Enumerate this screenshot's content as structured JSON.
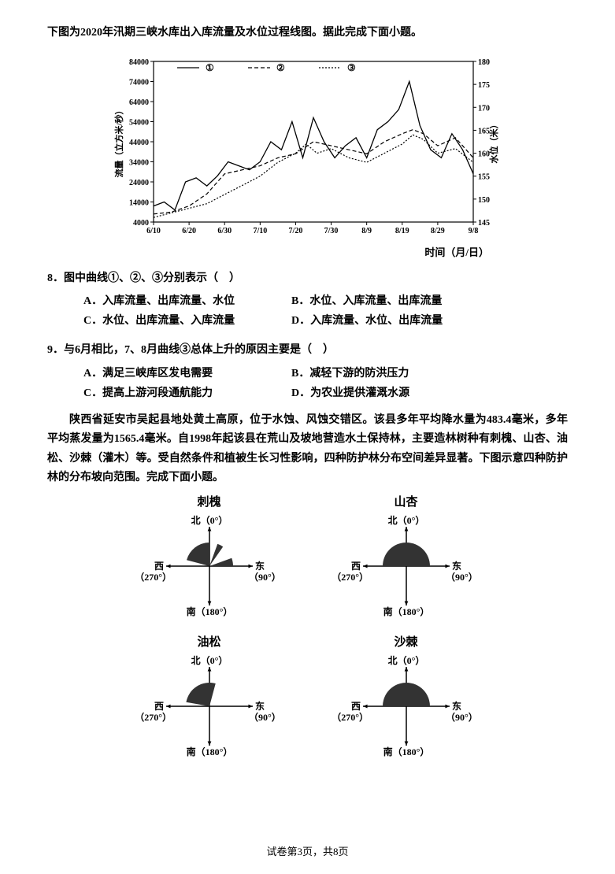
{
  "intro": "下图为2020年汛期三峡水库出入库流量及水位过程线图。据此完成下面小题。",
  "chart": {
    "type": "line",
    "bgcolor": "#ffffff",
    "border_color": "#000000",
    "grid_color": "#000000",
    "y_left_label": "流量（立方米/秒）",
    "y_right_label": "水位（米）",
    "x_label": "时间（月/日）",
    "y_left_ticks": [
      4000,
      14000,
      24000,
      34000,
      44000,
      54000,
      64000,
      74000,
      84000
    ],
    "y_left_lim": [
      4000,
      84000
    ],
    "y_right_ticks": [
      145,
      150,
      155,
      160,
      165,
      170,
      175,
      180
    ],
    "y_right_lim": [
      145,
      180
    ],
    "x_ticks": [
      "6/10",
      "6/20",
      "6/30",
      "7/10",
      "7/20",
      "7/30",
      "8/9",
      "8/19",
      "8/29",
      "9/8"
    ],
    "legend": {
      "items": [
        {
          "marker": "①",
          "style": "solid",
          "color": "#000000"
        },
        {
          "marker": "②",
          "style": "dash",
          "color": "#000000"
        },
        {
          "marker": "③",
          "style": "dot",
          "color": "#000000"
        }
      ]
    },
    "series1_style": "solid",
    "series1_color": "#000000",
    "series1_points": [
      [
        0,
        12000
      ],
      [
        0.3,
        14000
      ],
      [
        0.6,
        10000
      ],
      [
        0.9,
        24000
      ],
      [
        1.2,
        26000
      ],
      [
        1.5,
        22000
      ],
      [
        1.8,
        27000
      ],
      [
        2.1,
        34000
      ],
      [
        2.4,
        32000
      ],
      [
        2.7,
        30000
      ],
      [
        3.0,
        34000
      ],
      [
        3.3,
        44000
      ],
      [
        3.6,
        40000
      ],
      [
        3.9,
        54000
      ],
      [
        4.2,
        36000
      ],
      [
        4.5,
        56000
      ],
      [
        4.8,
        44000
      ],
      [
        5.1,
        36000
      ],
      [
        5.4,
        42000
      ],
      [
        5.7,
        46000
      ],
      [
        6.0,
        36000
      ],
      [
        6.3,
        50000
      ],
      [
        6.6,
        54000
      ],
      [
        6.9,
        60000
      ],
      [
        7.2,
        74000
      ],
      [
        7.5,
        52000
      ],
      [
        7.8,
        40000
      ],
      [
        8.1,
        36000
      ],
      [
        8.4,
        48000
      ],
      [
        8.7,
        40000
      ],
      [
        9.0,
        28000
      ]
    ],
    "series2_style": "dash",
    "series2_color": "#000000",
    "series2_points": [
      [
        0,
        8000
      ],
      [
        0.5,
        9000
      ],
      [
        1.0,
        12000
      ],
      [
        1.5,
        18000
      ],
      [
        2.0,
        28000
      ],
      [
        2.5,
        30000
      ],
      [
        3.0,
        32000
      ],
      [
        3.5,
        36000
      ],
      [
        4.0,
        38000
      ],
      [
        4.5,
        44000
      ],
      [
        5.0,
        42000
      ],
      [
        5.5,
        40000
      ],
      [
        6.0,
        38000
      ],
      [
        6.5,
        44000
      ],
      [
        7.0,
        48000
      ],
      [
        7.3,
        50000
      ],
      [
        7.6,
        48000
      ],
      [
        8.0,
        42000
      ],
      [
        8.5,
        46000
      ],
      [
        9.0,
        36000
      ]
    ],
    "series3_style": "dot",
    "series3_color": "#000000",
    "series3_points": [
      [
        0,
        146
      ],
      [
        0.5,
        147
      ],
      [
        1.0,
        148
      ],
      [
        1.5,
        149
      ],
      [
        2.0,
        151
      ],
      [
        2.5,
        153
      ],
      [
        3.0,
        155
      ],
      [
        3.5,
        158
      ],
      [
        4.0,
        160
      ],
      [
        4.3,
        162
      ],
      [
        4.6,
        160
      ],
      [
        5.0,
        161
      ],
      [
        5.5,
        159
      ],
      [
        6.0,
        158
      ],
      [
        6.5,
        160
      ],
      [
        7.0,
        162
      ],
      [
        7.3,
        164
      ],
      [
        7.6,
        163
      ],
      [
        8.0,
        160
      ],
      [
        8.5,
        161
      ],
      [
        9.0,
        158
      ]
    ]
  },
  "q8": {
    "num": "8．",
    "text": "图中曲线①、②、③分别表示（　）",
    "opts": {
      "A": "A．入库流量、出库流量、水位",
      "B": "B．水位、入库流量、出库流量",
      "C": "C．水位、出库流量、入库流量",
      "D": "D．入库流量、水位、出库流量"
    }
  },
  "q9": {
    "num": "9．",
    "text": "与6月相比，7、8月曲线③总体上升的原因主要是（　）",
    "opts": {
      "A": "A．满足三峡库区发电需要",
      "B": "B．减轻下游的防洪压力",
      "C": "C．提高上游河段通航能力",
      "D": "D．为农业提供灌溉水源"
    }
  },
  "passage": "陕西省延安市吴起县地处黄土高原，位于水蚀、风蚀交错区。该县多年平均降水量为483.4毫米，多年平均蒸发量为1565.4毫米。自1998年起该县在荒山及坡地营造水土保持林，主要造林树种有刺槐、山杏、油松、沙棘（灌木）等。受自然条件和植被生长习性影响，四种防护林分布空间差异显著。下图示意四种防护林的分布坡向范围。完成下面小题。",
  "diagrams": {
    "labels": {
      "n": "北（0°）",
      "e": "东",
      "e_deg": "（90°）",
      "s": "南（180°）",
      "w": "西",
      "w_deg": "（270°）"
    },
    "fill_color": "#333333",
    "stroke_color": "#000000",
    "items": [
      {
        "title": "刺槐",
        "start": 285,
        "end": 360,
        "extra_slivers": [
          [
            20,
            35
          ],
          [
            70,
            90
          ]
        ]
      },
      {
        "title": "山杏",
        "start": 270,
        "end": 90
      },
      {
        "title": "油松",
        "start": 280,
        "end": 15
      },
      {
        "title": "沙棘",
        "start": 270,
        "end": 90
      }
    ]
  },
  "footer": "试卷第3页，共8页"
}
